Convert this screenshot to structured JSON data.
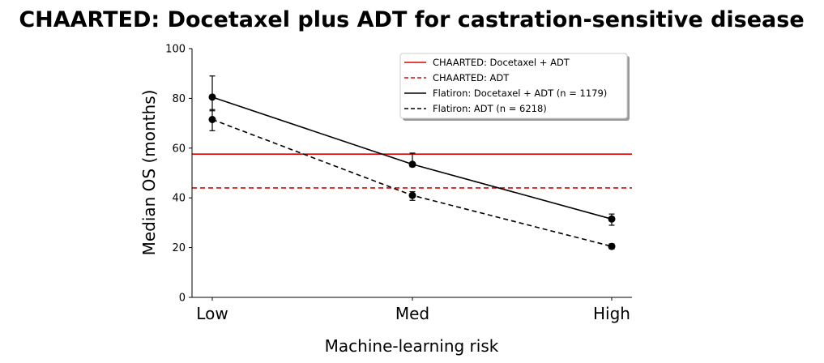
{
  "chart_data": {
    "type": "line",
    "title": "CHAARTED: Docetaxel plus ADT for castration-sensitive disease",
    "xlabel": "Machine-learning risk",
    "ylabel": "Median OS (months)",
    "categories": [
      "Low",
      "Med",
      "High"
    ],
    "ylim": [
      0,
      100
    ],
    "yticks": [
      "0",
      "20",
      "40",
      "60",
      "80",
      "100"
    ],
    "grid": false,
    "legend_position": "top-right",
    "series": [
      {
        "name": "Flatiron: Docetaxel + ADT (n = 1179)",
        "values": [
          80.5,
          53.5,
          31.5
        ],
        "err_low": [
          75.0,
          52.5,
          29.0
        ],
        "err_high": [
          89.0,
          58.0,
          33.5
        ],
        "color": "#000000",
        "style": "solid"
      },
      {
        "name": "Flatiron: ADT (n = 6218)",
        "values": [
          71.5,
          41.0,
          20.5
        ],
        "err_low": [
          67.0,
          39.0,
          19.5
        ],
        "err_high": [
          75.5,
          42.5,
          21.5
        ],
        "color": "#000000",
        "style": "dashed"
      }
    ],
    "reference_lines": [
      {
        "name": "CHAARTED: Docetaxel + ADT",
        "value": 57.6,
        "color": "#dd0000",
        "style": "solid"
      },
      {
        "name": "CHAARTED: ADT",
        "value": 44.0,
        "color": "#dd0000",
        "style": "dashed"
      }
    ],
    "legend_order": [
      "CHAARTED: Docetaxel + ADT",
      "CHAARTED: ADT",
      "Flatiron: Docetaxel + ADT (n = 1179)",
      "Flatiron: ADT (n = 6218)"
    ]
  }
}
